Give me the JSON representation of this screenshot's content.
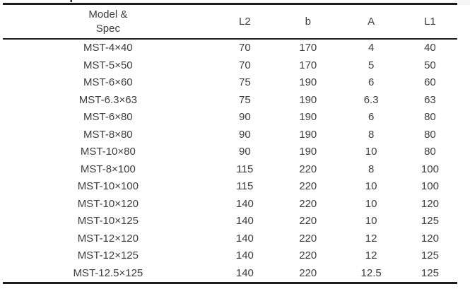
{
  "table": {
    "header": {
      "model_line1": "Model &",
      "model_line2": "Spec",
      "col_l2": "L2",
      "col_b": "b",
      "col_a": "A",
      "col_l1": "L1"
    },
    "row_keys": [
      "model",
      "l2",
      "b",
      "a",
      "l1"
    ],
    "rows": [
      {
        "model": "MST-4×40",
        "l2": "70",
        "b": "170",
        "a": "4",
        "l1": "40"
      },
      {
        "model": "MST-5×50",
        "l2": "70",
        "b": "170",
        "a": "5",
        "l1": "50"
      },
      {
        "model": "MST-6×60",
        "l2": "75",
        "b": "190",
        "a": "6",
        "l1": "60"
      },
      {
        "model": "MST-6.3×63",
        "l2": "75",
        "b": "190",
        "a": "6.3",
        "l1": "63"
      },
      {
        "model": "MST-6×80",
        "l2": "90",
        "b": "190",
        "a": "6",
        "l1": "80"
      },
      {
        "model": "MST-8×80",
        "l2": "90",
        "b": "190",
        "a": "8",
        "l1": "80"
      },
      {
        "model": "MST-10×80",
        "l2": "90",
        "b": "190",
        "a": "10",
        "l1": "80"
      },
      {
        "model": "MST-8×100",
        "l2": "115",
        "b": "220",
        "a": "8",
        "l1": "100"
      },
      {
        "model": "MST-10×100",
        "l2": "115",
        "b": "220",
        "a": "10",
        "l1": "100"
      },
      {
        "model": "MST-10×120",
        "l2": "140",
        "b": "220",
        "a": "10",
        "l1": "120"
      },
      {
        "model": "MST-10×125",
        "l2": "140",
        "b": "220",
        "a": "10",
        "l1": "125"
      },
      {
        "model": "MST-12×120",
        "l2": "140",
        "b": "220",
        "a": "12",
        "l1": "120"
      },
      {
        "model": "MST-12×125",
        "l2": "140",
        "b": "220",
        "a": "12",
        "l1": "125"
      },
      {
        "model": "MST-12.5×125",
        "l2": "140",
        "b": "220",
        "a": "12.5",
        "l1": "125"
      }
    ],
    "colors": {
      "rule": "#1c1c1c",
      "text": "#3d3d3d",
      "background": "#ffffff"
    }
  }
}
